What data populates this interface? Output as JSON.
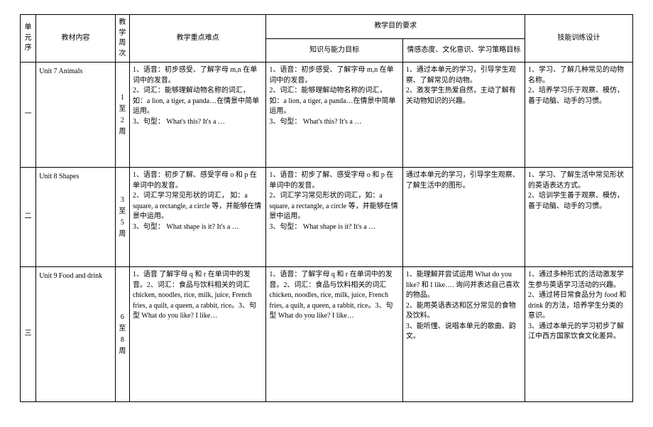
{
  "header": {
    "unit_seq": "单元序",
    "textbook_content": "教材内容",
    "teaching_week": "教学周次",
    "focus_difficulty": "教学重点难点",
    "teaching_req": "教学目的要求",
    "knowledge_ability": "知识与能力目标",
    "attitude_culture": "情感态度、文化意识、学习策略目标",
    "skill_design": "技能训练设计"
  },
  "rows": [
    {
      "seq": "一",
      "title": "Unit 7 Animals",
      "week": "1 至 2 周",
      "focus": "1、语音：初步感受、了解字母 m,n 在单词中的发音。\n2、词汇：能够理解动物名称的词汇，如：a lion, a tiger, a panda…在情景中简单运用。\n3、句型：  What's this? It's a …",
      "knowledge": "1、语音：初步感受、了解字母 m,n 在单词中的发音。\n2、词汇：能够理解动物名称的词汇，如：a lion, a tiger, a panda…在情景中简单运用。\n3、句型：  What's this? It's a …",
      "attitude": "1、通过本单元的学习，引导学生观察、了解常见的动物。\n2、激发学生热爱自然，主动了解有关动物知识的兴趣。",
      "skill": "1、学习、了解几种常见的动物名称。\n2、培养学习乐于观察、模仿，善于动脑、动手的习惯。"
    },
    {
      "seq": "二",
      "title": "Unit 8 Shapes",
      "week": "3 至 5 周",
      "focus": "1、语音：初步了解、感受字母 o 和 p 在单词中的发音。\n2、词汇学习常见形状的词汇，  如：a square, a rectangle, a circle 等，并能够在情景中运用。\n3、句型：  What shape is it? It's  a  …",
      "knowledge": "1、语音：初步了解、感受字母 o 和 p 在单词中的发音。\n2、词汇学习常见形状的词汇，如：a square, a rectangle, a circle 等，并能够在情景中运用。\n3、句型：  What shape is it? It's  a  …",
      "attitude": "  通过本单元的学习，引导学生观察、了解生活中的图形。",
      "skill": "1、学习、了解生活中常见形状的英语表达方式。\n2、培训学生善于观察、模仿，善于动脑、动手的习惯。"
    },
    {
      "seq": "三",
      "title": "Unit 9 Food and drink",
      "week": "6 至 8 周",
      "focus": "1、语音  了解字母 q 和 r 在单词中的发音。2、词汇：食品与饮料相关的词汇 chicken, noodles, rice, milk, juice, French fries, a quilt, a queen, a rabbit, rice。3、句型  What do you like? I like…",
      "knowledge": "1、语音：了解字母 q 和 r 在单词中的发音。2、词汇：食品与饮料相关的词汇 chicken, noodles, rice, milk, juice, French fries, a quilt, a queen, a rabbit, rice。3、句型  What do you like?   I like…",
      "attitude": "1、能理解并尝试运用 What do you like? 和  I like….  询问并表达自己喜欢的物品。\n2、能用英语表达和区分常见的食物及饮料。\n3、能听懂、说唱本单元的歌曲、韵文。",
      "skill": "1、通过多种形式的活动激发学生参与英语学习活动的兴趣。\n2、通过将日常食品分为 food 和 drink 的方法，培养学生分类的意识。\n3、通过本单元的学习初步了解江中西方国家饮食文化差异。"
    }
  ]
}
